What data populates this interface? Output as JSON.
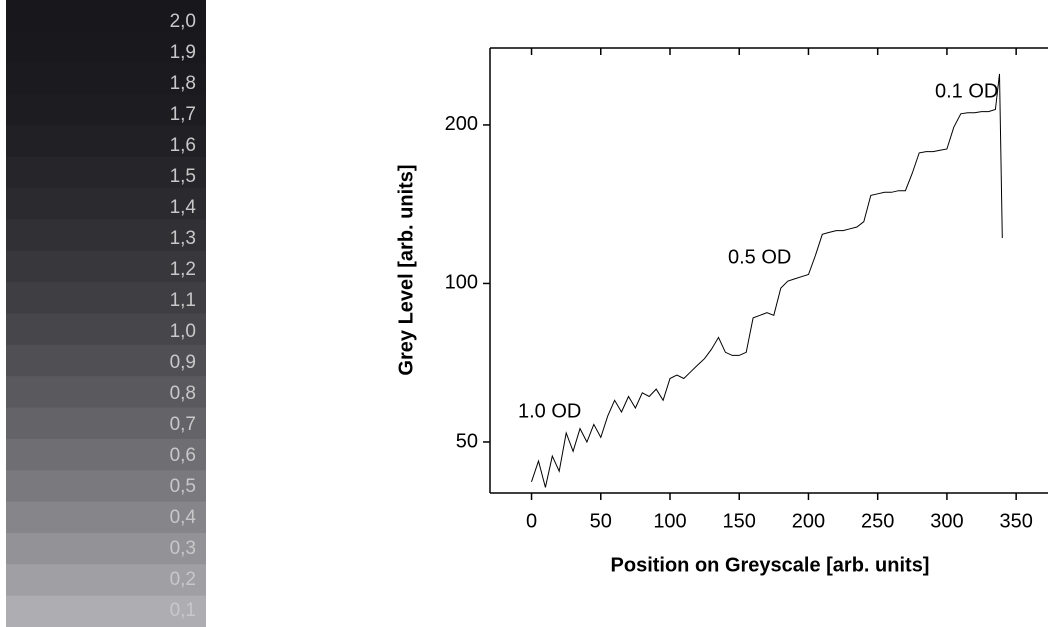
{
  "wedge": {
    "labels": [
      "2,0",
      "1,9",
      "1,8",
      "1,7",
      "1,6",
      "1,5",
      "1,4",
      "1,3",
      "1,2",
      "1,1",
      "1,0",
      "0,9",
      "0,8",
      "0,7",
      "0,6",
      "0,5",
      "0,4",
      "0,3",
      "0,2",
      "0,1"
    ]
  },
  "chart_data": {
    "type": "line",
    "x_label": "Position on Greyscale [arb. units]",
    "y_label": "Grey Level [arb. units]",
    "x": [
      0,
      5,
      10,
      15,
      20,
      25,
      30,
      35,
      40,
      45,
      50,
      55,
      60,
      65,
      70,
      75,
      80,
      85,
      90,
      95,
      100,
      105,
      110,
      115,
      120,
      125,
      130,
      135,
      140,
      145,
      150,
      155,
      160,
      165,
      170,
      175,
      180,
      185,
      190,
      195,
      200,
      205,
      210,
      215,
      220,
      225,
      230,
      235,
      240,
      245,
      250,
      255,
      260,
      265,
      270,
      275,
      280,
      285,
      290,
      295,
      300,
      305,
      310,
      315,
      320,
      325,
      330,
      335,
      338,
      340
    ],
    "series": [
      {
        "color": "#000000",
        "values": [
          42,
          46,
          41,
          47,
          44,
          52,
          48,
          53,
          50,
          54,
          51,
          56,
          60,
          57,
          61,
          58,
          62,
          61,
          63,
          60,
          66,
          67,
          66,
          68,
          70,
          72,
          75,
          79,
          74,
          73,
          73,
          74,
          86,
          87,
          88,
          87,
          98,
          101,
          102,
          103,
          104,
          113,
          124,
          125,
          126,
          126,
          127,
          128,
          131,
          147,
          148,
          149,
          149,
          150,
          150,
          162,
          177,
          178,
          178,
          179,
          180,
          198,
          210,
          211,
          211,
          212,
          212,
          214,
          250,
          122
        ]
      }
    ],
    "xlim": [
      -30,
      373
    ],
    "ylim": [
      40,
      280
    ],
    "ylog": true,
    "xticks": [
      0,
      50,
      100,
      150,
      200,
      250,
      300,
      350
    ],
    "yticks": [
      50,
      100,
      200
    ],
    "annotations": [
      "1.0 OD",
      "0.5 OD",
      "0.1 OD"
    ]
  }
}
